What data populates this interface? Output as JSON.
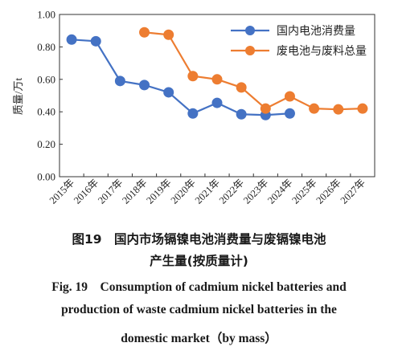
{
  "figure": {
    "caption_cn_line1": "图19　国内市场镉镍电池消费量与废镉镍电池",
    "caption_cn_line2": "产生量(按质量计)",
    "caption_en_line1": "Fig. 19　Consumption of cadmium nickel batteries and",
    "caption_en_line2": "production of waste cadmium nickel batteries in the",
    "caption_en_line3": "domestic market（by mass）"
  },
  "chart_data": {
    "type": "line",
    "title": "",
    "xlabel": "",
    "ylabel": "质量/万t",
    "categories": [
      "2015年",
      "2016年",
      "2017年",
      "2018年",
      "2019年",
      "2020年",
      "2021年",
      "2022年",
      "2023年",
      "2024年",
      "2025年",
      "2026年",
      "2027年"
    ],
    "ylim": [
      0,
      1.0
    ],
    "yticks": [
      "0.00",
      "0.20",
      "0.40",
      "0.60",
      "0.80",
      "1.00"
    ],
    "ytick_values": [
      0,
      0.2,
      0.4,
      0.6,
      0.8,
      1.0
    ],
    "grid": false,
    "legend_position": "top-right",
    "series": [
      {
        "name": "国内电池消费量",
        "color": "#4472C4",
        "values": [
          0.845,
          0.835,
          0.59,
          0.565,
          0.52,
          0.39,
          0.455,
          0.385,
          0.38,
          0.39,
          null,
          null,
          null
        ]
      },
      {
        "name": "废电池与废料总量",
        "color": "#ED7D31",
        "values": [
          null,
          null,
          null,
          0.89,
          0.875,
          0.62,
          0.6,
          0.55,
          0.42,
          0.495,
          0.42,
          0.415,
          0.42
        ]
      }
    ]
  }
}
